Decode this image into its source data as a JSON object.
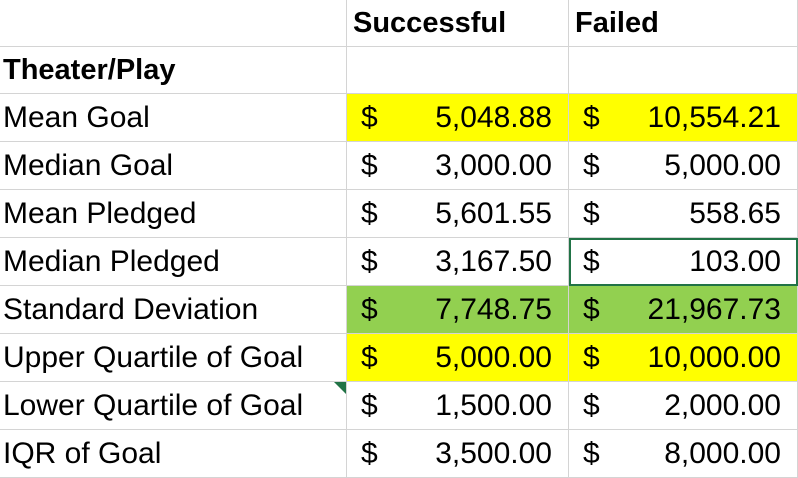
{
  "header": {
    "col_a": "",
    "col_b": "Successful",
    "col_c": "Failed"
  },
  "section_title": "Theater/Play",
  "currency_symbol": "$",
  "rows": [
    {
      "label": "Mean Goal",
      "successful": "5,048.88",
      "failed": "10,554.21",
      "highlight": "#ffff00"
    },
    {
      "label": "Median Goal",
      "successful": "3,000.00",
      "failed": "5,000.00",
      "highlight": ""
    },
    {
      "label": "Mean Pledged",
      "successful": "5,601.55",
      "failed": "558.65",
      "highlight": ""
    },
    {
      "label": "Median Pledged",
      "successful": "3,167.50",
      "failed": "103.00",
      "highlight": ""
    },
    {
      "label": "Standard Deviation",
      "successful": "7,748.75",
      "failed": "21,967.73",
      "highlight": "#92d050"
    },
    {
      "label": "Upper Quartile of Goal",
      "successful": "5,000.00",
      "failed": "10,000.00",
      "highlight": "#ffff00"
    },
    {
      "label": "Lower Quartile of Goal",
      "successful": "1,500.00",
      "failed": "2,000.00",
      "highlight": ""
    },
    {
      "label": "IQR of Goal",
      "successful": "3,500.00",
      "failed": "8,000.00",
      "highlight": ""
    }
  ],
  "selection_color": "#217346"
}
